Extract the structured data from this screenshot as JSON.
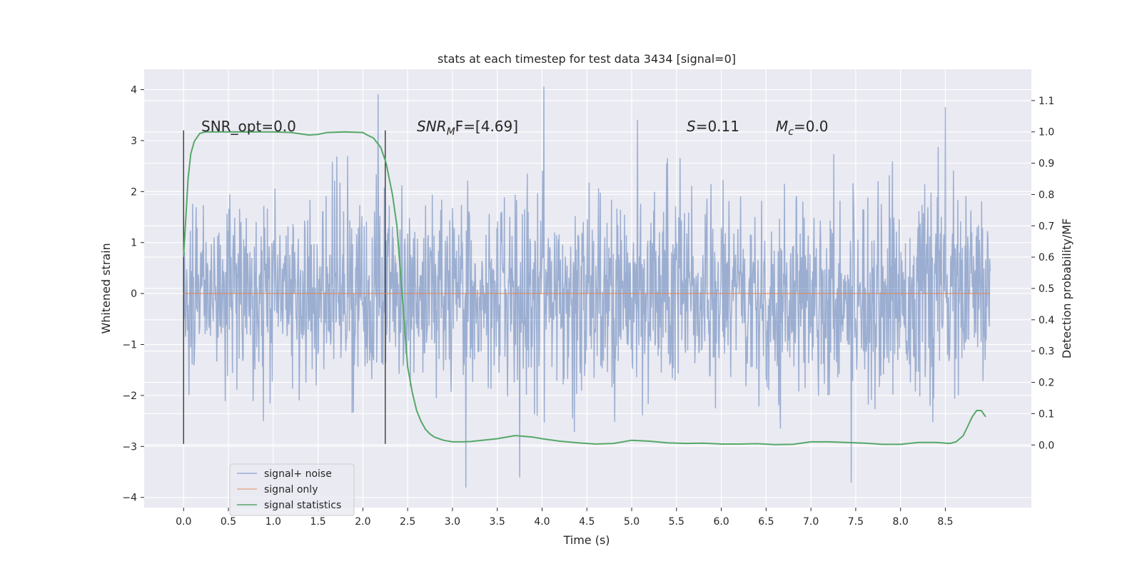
{
  "chart_data": {
    "type": "line",
    "title": "stats at each timestep for test data 3434 [signal=0]",
    "xlabel": "Time (s)",
    "ylabel_left": "Whitened strain",
    "ylabel_right": "Detection probability/MF",
    "xlim": [
      -0.44,
      9.46
    ],
    "ylim_left": [
      -4.2,
      4.4
    ],
    "ylim_right": [
      -0.2,
      1.2
    ],
    "x_ticks": [
      "0.0",
      "0.5",
      "1.0",
      "1.5",
      "2.0",
      "2.5",
      "3.0",
      "3.5",
      "4.0",
      "4.5",
      "5.0",
      "5.5",
      "6.0",
      "6.5",
      "7.0",
      "7.5",
      "8.0",
      "8.5"
    ],
    "y_ticks_left": [
      "4",
      "3",
      "2",
      "1",
      "0",
      "−1",
      "−2",
      "−3",
      "−4"
    ],
    "y_ticks_right": [
      "1.1",
      "1.0",
      "0.9",
      "0.8",
      "0.7",
      "0.6",
      "0.5",
      "0.4",
      "0.3",
      "0.2",
      "0.1",
      "0.0"
    ],
    "grid": true,
    "legend_position": "bottom-left",
    "annotations": {
      "snr_opt": "SNR_opt=0.0",
      "snr_mf_sym": "SNR",
      "snr_mf_sub": "M",
      "snr_mf_rest": "F=[4.69]",
      "s_sym": "S",
      "s_rest": "=0.11",
      "mc_sym": "M",
      "mc_sub": "c",
      "mc_rest": "=0.0"
    },
    "vertical_markers": [
      0.0,
      2.25
    ],
    "series": [
      {
        "name": "signal+ noise",
        "color": "#4c72b0",
        "x_range": [
          0.0,
          9.0
        ],
        "amplitude_typical": 1.3,
        "notable_peaks": [
          {
            "x": 2.17,
            "y": 3.9
          },
          {
            "x": 4.02,
            "y": 4.05
          },
          {
            "x": 8.5,
            "y": 3.65
          },
          {
            "x": 3.15,
            "y": -3.8
          },
          {
            "x": 7.45,
            "y": -3.7
          },
          {
            "x": 3.75,
            "y": -3.6
          }
        ]
      },
      {
        "name": "signal only",
        "color": "#dd8452",
        "x": [
          0.0,
          9.0
        ],
        "y": [
          0.0,
          0.0
        ]
      },
      {
        "name": "signal statistics",
        "color": "#55a868",
        "axis": "right",
        "x": [
          0.0,
          0.05,
          0.08,
          0.12,
          0.18,
          0.25,
          0.4,
          0.6,
          0.8,
          1.0,
          1.2,
          1.4,
          1.5,
          1.6,
          1.8,
          2.0,
          2.05,
          2.12,
          2.2,
          2.26,
          2.33,
          2.38,
          2.42,
          2.46,
          2.5,
          2.55,
          2.6,
          2.65,
          2.7,
          2.75,
          2.8,
          2.9,
          3.0,
          3.1,
          3.2,
          3.3,
          3.5,
          3.7,
          3.9,
          4.0,
          4.2,
          4.4,
          4.6,
          4.8,
          5.0,
          5.2,
          5.4,
          5.6,
          5.8,
          6.0,
          6.2,
          6.4,
          6.6,
          6.8,
          7.0,
          7.2,
          7.4,
          7.6,
          7.8,
          8.0,
          8.2,
          8.4,
          8.55,
          8.62,
          8.7,
          8.75,
          8.8,
          8.85,
          8.9,
          8.95
        ],
        "y": [
          0.6,
          0.85,
          0.93,
          0.97,
          0.995,
          1.0,
          1.0,
          1.0,
          1.0,
          1.0,
          0.998,
          0.99,
          0.992,
          0.998,
          1.0,
          0.998,
          0.99,
          0.98,
          0.95,
          0.9,
          0.8,
          0.7,
          0.55,
          0.4,
          0.25,
          0.17,
          0.11,
          0.075,
          0.05,
          0.035,
          0.025,
          0.015,
          0.01,
          0.01,
          0.011,
          0.014,
          0.02,
          0.03,
          0.025,
          0.02,
          0.012,
          0.007,
          0.003,
          0.005,
          0.015,
          0.012,
          0.007,
          0.005,
          0.006,
          0.003,
          0.003,
          0.004,
          0.001,
          0.002,
          0.01,
          0.01,
          0.008,
          0.006,
          0.002,
          0.002,
          0.008,
          0.008,
          0.005,
          0.01,
          0.03,
          0.06,
          0.09,
          0.11,
          0.11,
          0.09
        ]
      }
    ]
  }
}
